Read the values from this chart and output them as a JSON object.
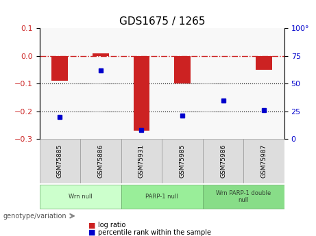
{
  "title": "GDS1675 / 1265",
  "samples": [
    "GSM75885",
    "GSM75886",
    "GSM75931",
    "GSM75985",
    "GSM75986",
    "GSM75987"
  ],
  "log_ratio": [
    -0.09,
    0.01,
    -0.27,
    -0.1,
    0.0,
    -0.05
  ],
  "percentile_rank": [
    20,
    62,
    8,
    21,
    35,
    26
  ],
  "ylim_left": [
    -0.3,
    0.1
  ],
  "ylim_right": [
    0,
    100
  ],
  "yticks_left": [
    -0.3,
    -0.2,
    -0.1,
    0.0,
    0.1
  ],
  "yticks_right": [
    0,
    25,
    50,
    75,
    100
  ],
  "hlines": [
    -0.1,
    -0.2
  ],
  "zero_line": 0.0,
  "bar_color": "#cc2222",
  "dot_color": "#0000cc",
  "background_plot": "#ffffff",
  "groups": [
    {
      "label": "Wrn null",
      "samples": [
        "GSM75885",
        "GSM75886"
      ],
      "color": "#ccffcc"
    },
    {
      "label": "PARP-1 null",
      "samples": [
        "GSM75931",
        "GSM75985"
      ],
      "color": "#99ee99"
    },
    {
      "label": "Wrn PARP-1 double\nnull",
      "samples": [
        "GSM75986",
        "GSM75987"
      ],
      "color": "#88dd88"
    }
  ],
  "legend_log_ratio_color": "#cc2222",
  "legend_percentile_color": "#0000cc",
  "genotype_label": "genotype/variation",
  "xlabel_color": "#333333",
  "left_axis_color": "#cc2222",
  "right_axis_color": "#0000cc"
}
